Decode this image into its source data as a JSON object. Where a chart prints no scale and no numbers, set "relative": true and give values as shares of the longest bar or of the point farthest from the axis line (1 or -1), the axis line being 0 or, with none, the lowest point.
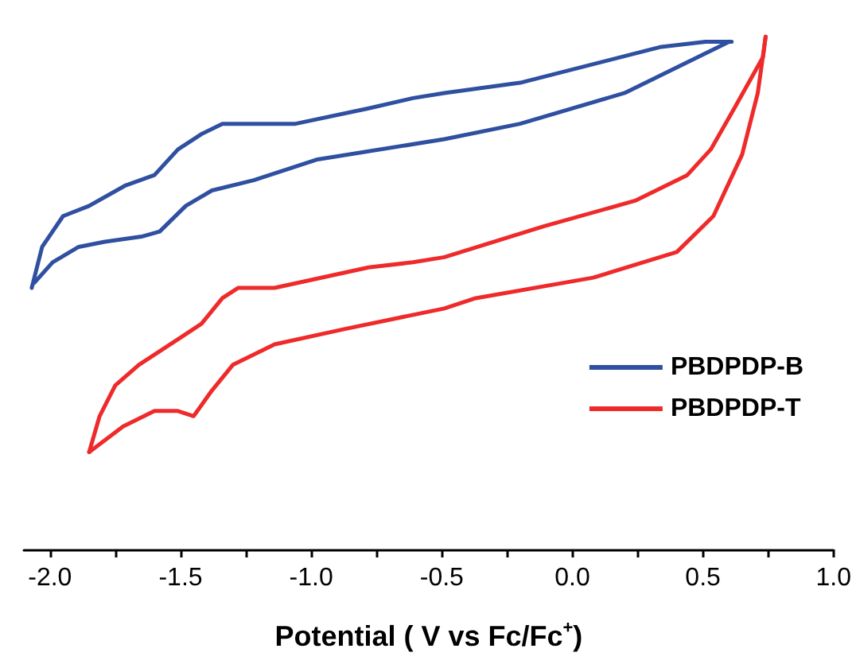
{
  "chart_data": {
    "type": "line",
    "relative": true,
    "xlabel": "Potential ( V vs Fc/Fc$^{+}$)",
    "xlim": [
      -2.1,
      1.0
    ],
    "xticks": [
      {
        "value": -2.0,
        "label": "-2.0"
      },
      {
        "value": -1.75,
        "label": null
      },
      -1.5,
      {
        "value": -1.25,
        "label": null
      },
      {
        "value": -1.0,
        "label": "-1.0"
      },
      {
        "value": -0.75,
        "label": null
      },
      -0.5,
      {
        "value": -0.25,
        "label": null
      },
      {
        "value": 0.0,
        "label": "0.0"
      },
      {
        "value": 0.25,
        "label": null
      },
      0.5,
      {
        "value": 0.75,
        "label": null
      },
      {
        "value": 1.0,
        "label": "1.0"
      }
    ],
    "tick_labels": "x",
    "grid": false,
    "legend": "right",
    "marker": "none",
    "line_style": "solid",
    "series": [
      {
        "name": "PBDPDP-B",
        "color": "#2f4fa0",
        "x": [
          -2.07,
          -2.03,
          -1.95,
          -1.85,
          -1.71,
          -1.6,
          -1.51,
          -1.42,
          -1.34,
          -1.06,
          -0.78,
          -0.61,
          -0.49,
          -0.2,
          0.34,
          0.51,
          0.61
        ],
        "values": [
          0.51,
          0.59,
          0.65,
          0.67,
          0.71,
          0.73,
          0.78,
          0.81,
          0.83,
          0.83,
          0.86,
          0.88,
          0.89,
          0.91,
          0.98,
          0.99,
          0.99
        ]
      },
      {
        "color": "#2f4fa0",
        "x": [
          -2.06,
          -1.99,
          -1.89,
          -1.79,
          -1.65,
          -1.58,
          -1.48,
          -1.38,
          -1.22,
          -0.98,
          -0.49,
          -0.2,
          0.2,
          0.4,
          0.56,
          0.6
        ],
        "values": [
          0.52,
          0.56,
          0.59,
          0.6,
          0.61,
          0.62,
          0.67,
          0.7,
          0.72,
          0.76,
          0.8,
          0.83,
          0.89,
          0.94,
          0.98,
          0.99
        ]
      },
      {
        "name": "PBDPDP-T",
        "color": "#ee2a2a",
        "x": [
          -1.85,
          -1.81,
          -1.75,
          -1.66,
          -1.51,
          -1.42,
          -1.34,
          -1.28,
          -1.14,
          -0.78,
          -0.61,
          -0.49,
          -0.11,
          0.24,
          0.44,
          0.53,
          0.62,
          0.73,
          0.74
        ],
        "values": [
          0.19,
          0.26,
          0.32,
          0.36,
          0.41,
          0.44,
          0.49,
          0.51,
          0.51,
          0.55,
          0.56,
          0.57,
          0.63,
          0.68,
          0.73,
          0.78,
          0.86,
          0.96,
          1.0
        ]
      },
      {
        "color": "#ee2a2a",
        "x": [
          -1.85,
          -1.72,
          -1.6,
          -1.51,
          -1.45,
          -1.38,
          -1.3,
          -1.14,
          -0.87,
          -0.49,
          -0.37,
          0.08,
          0.4,
          0.54,
          0.65,
          0.71,
          0.74
        ],
        "values": [
          0.19,
          0.24,
          0.27,
          0.27,
          0.26,
          0.31,
          0.36,
          0.4,
          0.43,
          0.47,
          0.49,
          0.53,
          0.58,
          0.65,
          0.77,
          0.89,
          1.0
        ]
      }
    ]
  }
}
